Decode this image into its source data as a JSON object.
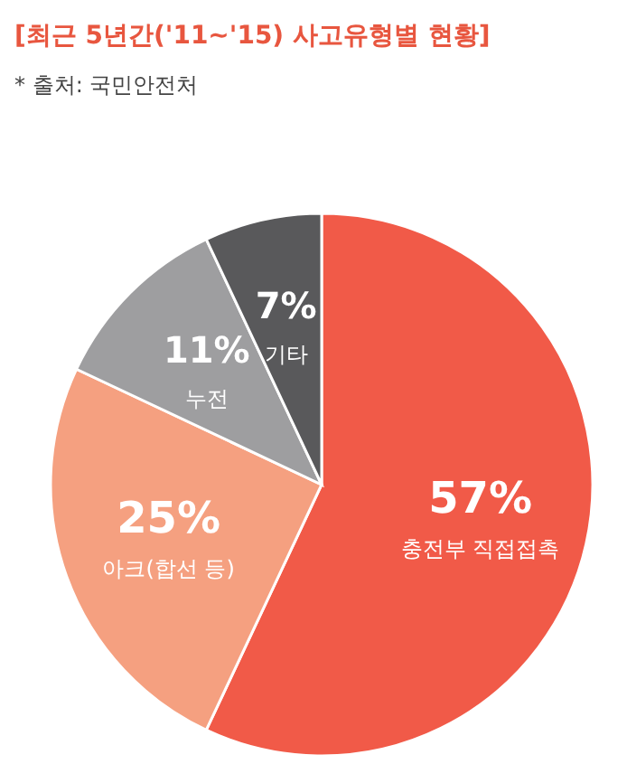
{
  "chart_data": {
    "type": "pie",
    "title": "[최근 5년간('11~'15) 사고유형별 현황]",
    "subtitle": "* 출처: 국민안전처",
    "categories": [
      "충전부 직접접촉",
      "아크(합선 등)",
      "누전",
      "기타"
    ],
    "values": [
      57,
      25,
      11,
      7
    ],
    "colors": [
      "#f15a48",
      "#f5a080",
      "#9e9ea0",
      "#59595b"
    ],
    "value_labels": [
      "57%",
      "25%",
      "11%",
      "7%"
    ],
    "legend": false
  }
}
